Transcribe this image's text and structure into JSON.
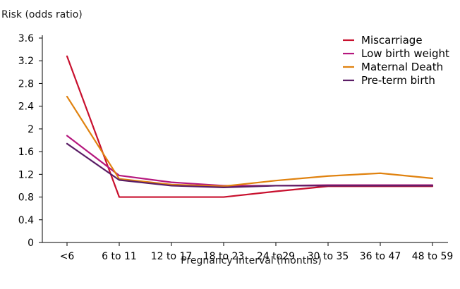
{
  "chart_data": {
    "type": "line",
    "ylabel": "Risk (odds ratio)",
    "xlabel": "Pregnancy Interval (months)",
    "categories": [
      "<6",
      "6 to 11",
      "12 to 17",
      "18 to 23",
      "24 to29",
      "30 to 35",
      "36 to 47",
      "48 to 59"
    ],
    "y_ticks": [
      "0",
      "0.4",
      "0.8",
      "1.2",
      "1.6",
      "2",
      "2.4",
      "2.8",
      "3.2",
      "3.6"
    ],
    "ylim": [
      0,
      3.6
    ],
    "grid": false,
    "legend_position": "top-right",
    "series": [
      {
        "name": "Miscarriage",
        "color": "#c8102e",
        "values": [
          3.28,
          0.8,
          0.8,
          0.8,
          0.9,
          0.99,
          0.99,
          0.99
        ]
      },
      {
        "name": "Low birth weight",
        "color": "#b5177e",
        "values": [
          1.88,
          1.18,
          1.06,
          1.0,
          1.0,
          1.01,
          1.01,
          1.01
        ]
      },
      {
        "name": "Maternal Death",
        "color": "#e0820f",
        "values": [
          2.57,
          1.12,
          1.02,
          0.99,
          1.09,
          1.17,
          1.22,
          1.13
        ]
      },
      {
        "name": "Pre-term birth",
        "color": "#5b1e66",
        "values": [
          1.74,
          1.1,
          1.0,
          0.97,
          1.0,
          1.0,
          1.0,
          1.0
        ]
      }
    ]
  }
}
